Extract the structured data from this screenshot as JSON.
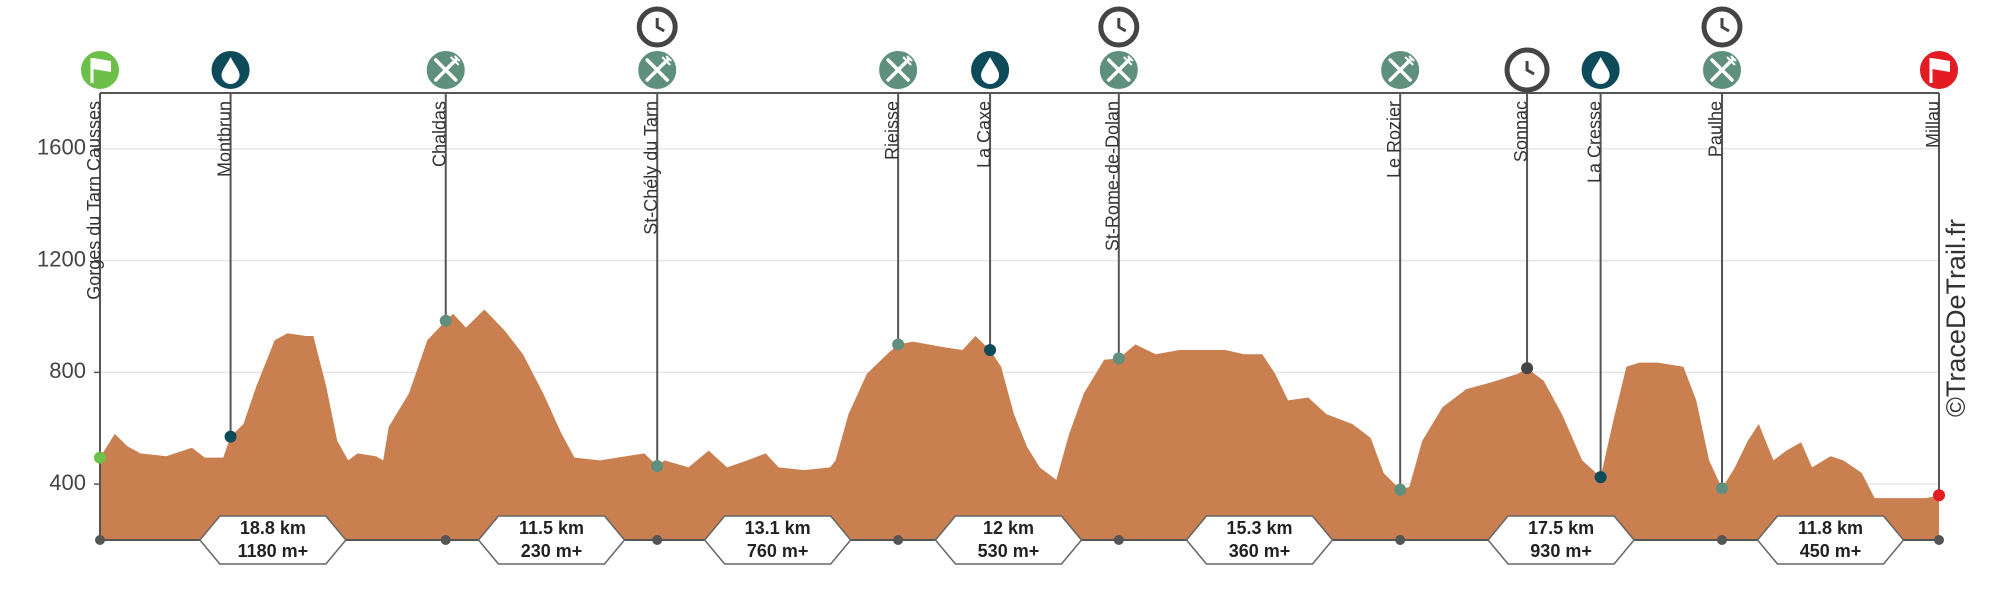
{
  "chart_data": {
    "type": "area",
    "watermark": "©TraceDeTrail.fr",
    "xlim": [
      0,
      100
    ],
    "ylim": [
      200,
      1800
    ],
    "yticks": [
      400,
      800,
      1200,
      1600
    ],
    "grid": true,
    "x": [
      0,
      0.8,
      1.5,
      2.2,
      3.6,
      5.0,
      5.7,
      6.7,
      7.1,
      7.8,
      8.5,
      9.5,
      10.2,
      11.2,
      11.6,
      12.3,
      12.9,
      13.5,
      14.0,
      15.0,
      15.4,
      15.7,
      16.8,
      17.8,
      18.8,
      19.2,
      19.9,
      20.9,
      22.0,
      23.0,
      24.1,
      25.1,
      25.8,
      27.2,
      28.6,
      29.6,
      30.3,
      30.7,
      32.0,
      33.1,
      34.1,
      35.2,
      36.2,
      36.9,
      38.3,
      39.7,
      40.0,
      40.7,
      41.7,
      42.8,
      43.4,
      44.2,
      45.9,
      46.9,
      47.6,
      48.4,
      49.0,
      49.7,
      50.4,
      51.1,
      52.0,
      52.7,
      53.5,
      54.6,
      55.4,
      56.3,
      57.4,
      58.7,
      60.1,
      61.2,
      62.2,
      63.2,
      63.9,
      64.6,
      65.7,
      66.7,
      68.1,
      69.1,
      69.8,
      70.7,
      71.2,
      71.9,
      73.0,
      74.3,
      75.7,
      77.1,
      77.6,
      78.5,
      79.5,
      80.6,
      81.6,
      82.3,
      83.0,
      83.7,
      84.7,
      86.1,
      86.8,
      87.5,
      88.2,
      88.9,
      89.6,
      90.2,
      91.0,
      91.7,
      92.5,
      93.1,
      94.1,
      94.8,
      95.8,
      96.5,
      97.9,
      99.3,
      100
    ],
    "series": [
      {
        "color": "#c97f50",
        "values": [
          495,
          580,
          535,
          510,
          500,
          530,
          495,
          495,
          570,
          615,
          750,
          915,
          940,
          930,
          930,
          750,
          555,
          485,
          510,
          500,
          485,
          605,
          725,
          915,
          985,
          1010,
          960,
          1025,
          950,
          865,
          725,
          580,
          495,
          485,
          500,
          510,
          465,
          485,
          460,
          520,
          460,
          485,
          510,
          460,
          450,
          460,
          485,
          650,
          795,
          865,
          900,
          910,
          890,
          880,
          930,
          880,
          820,
          650,
          535,
          460,
          415,
          580,
          725,
          845,
          850,
          900,
          865,
          880,
          880,
          880,
          865,
          865,
          795,
          700,
          710,
          650,
          615,
          565,
          440,
          380,
          390,
          555,
          675,
          740,
          765,
          795,
          815,
          770,
          650,
          485,
          425,
          630,
          820,
          835,
          835,
          820,
          700,
          485,
          385,
          460,
          555,
          615,
          485,
          520,
          550,
          460,
          500,
          485,
          440,
          350,
          350,
          350,
          360
        ]
      }
    ],
    "waypoints": [
      {
        "label": "Gorges du Tarn Causses",
        "km": 0,
        "elevation": 495,
        "icon": "start",
        "color": "#6cc04a",
        "cutoff": false
      },
      {
        "label": "Montbrun",
        "km": 7.1,
        "elevation": 570,
        "icon": "water",
        "color": "#0d4a5a",
        "cutoff": false
      },
      {
        "label": "Chaldas",
        "km": 18.8,
        "elevation": 985,
        "icon": "food",
        "color": "#5f8f7d",
        "cutoff": false
      },
      {
        "label": "St-Chély du Tarn",
        "km": 30.3,
        "elevation": 465,
        "icon": "food",
        "color": "#5f8f7d",
        "cutoff": true
      },
      {
        "label": "Rieisse",
        "km": 43.4,
        "elevation": 900,
        "icon": "food",
        "color": "#5f8f7d",
        "cutoff": false
      },
      {
        "label": "La Caxe",
        "km": 48.4,
        "elevation": 880,
        "icon": "water",
        "color": "#0d4a5a",
        "cutoff": false
      },
      {
        "label": "St-Rome-de-Dolan",
        "km": 55.4,
        "elevation": 850,
        "icon": "food",
        "color": "#5f8f7d",
        "cutoff": true
      },
      {
        "label": "Le Rozier",
        "km": 70.7,
        "elevation": 380,
        "icon": "food",
        "color": "#5f8f7d",
        "cutoff": false
      },
      {
        "label": "Sonnac",
        "km": 77.6,
        "elevation": 815,
        "icon": "time",
        "color": "#444444",
        "cutoff": false
      },
      {
        "label": "La Cresse",
        "km": 81.6,
        "elevation": 425,
        "icon": "water",
        "color": "#0d4a5a",
        "cutoff": false
      },
      {
        "label": "Paulhe",
        "km": 88.2,
        "elevation": 385,
        "icon": "food",
        "color": "#5f8f7d",
        "cutoff": true
      },
      {
        "label": "Millau",
        "km": 100,
        "elevation": 360,
        "icon": "finish",
        "color": "#e31b23",
        "cutoff": false
      }
    ],
    "segments": [
      {
        "distance": {
          "value": 18.8,
          "label": "18.8 km"
        },
        "climb": {
          "value": 1180,
          "label": "1180 m+"
        }
      },
      {
        "distance": {
          "value": 11.5,
          "label": "11.5 km"
        },
        "climb": {
          "value": 230,
          "label": "230 m+"
        }
      },
      {
        "distance": {
          "value": 13.1,
          "label": "13.1 km"
        },
        "climb": {
          "value": 760,
          "label": "760 m+"
        }
      },
      {
        "distance": {
          "value": 12,
          "label": "12 km"
        },
        "climb": {
          "value": 530,
          "label": "530 m+"
        }
      },
      {
        "distance": {
          "value": 15.3,
          "label": "15.3 km"
        },
        "climb": {
          "value": 360,
          "label": "360 m+"
        }
      },
      {
        "distance": {
          "value": 17.5,
          "label": "17.5 km"
        },
        "climb": {
          "value": 930,
          "label": "930 m+"
        }
      },
      {
        "distance": {
          "value": 11.8,
          "label": "11.8 km"
        },
        "climb": {
          "value": 450,
          "label": "450 m+"
        }
      }
    ]
  }
}
